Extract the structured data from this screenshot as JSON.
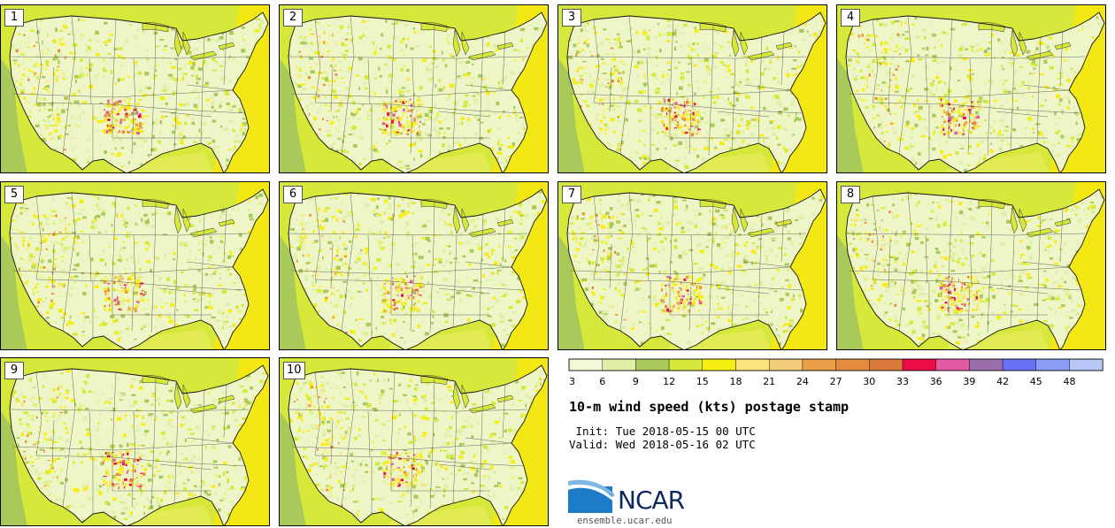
{
  "panels": [
    {
      "label": "1"
    },
    {
      "label": "2"
    },
    {
      "label": "3"
    },
    {
      "label": "4"
    },
    {
      "label": "5"
    },
    {
      "label": "6"
    },
    {
      "label": "7"
    },
    {
      "label": "8"
    },
    {
      "label": "9"
    },
    {
      "label": "10"
    }
  ],
  "colorbar": {
    "ticks": [
      "3",
      "6",
      "9",
      "12",
      "15",
      "18",
      "21",
      "24",
      "27",
      "30",
      "33",
      "36",
      "39",
      "42",
      "45",
      "48"
    ],
    "colors": [
      "#f2f7d6",
      "#dff0a6",
      "#a9c95a",
      "#d6e83a",
      "#f6ee10",
      "#fbe57a",
      "#f3cc7c",
      "#ea9e45",
      "#e58b3f",
      "#d97a3b",
      "#ec0c46",
      "#e25aa3",
      "#9a6eab",
      "#6870f3",
      "#8a9ef5",
      "#b7c8f8"
    ]
  },
  "title": "10-m wind speed (kts) postage stamp",
  "init": " Init: Tue 2018-05-15 00 UTC",
  "valid": "Valid: Wed 2018-05-16 02 UTC",
  "logo": {
    "text": "NCAR",
    "url": "ensemble.ucar.edu"
  }
}
